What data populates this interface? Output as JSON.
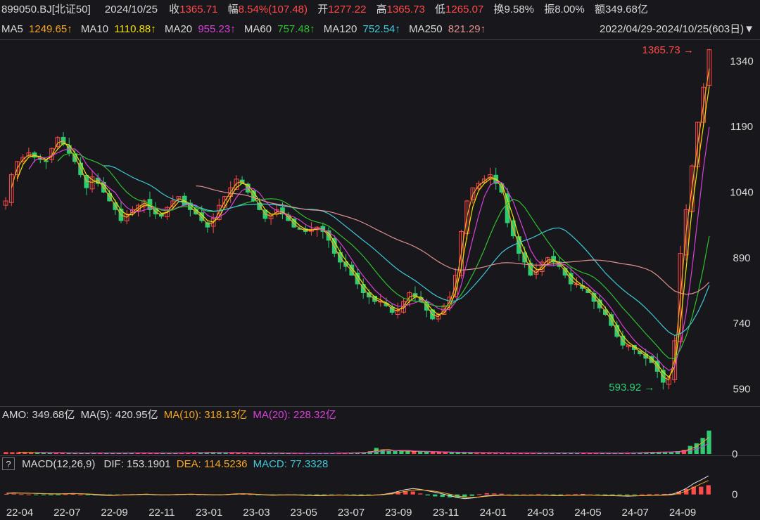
{
  "header": {
    "symbol": "899050.BJ[北证50]",
    "date": "2024/10/25",
    "close_label": "收",
    "close": "1365.71",
    "change_label": "幅",
    "change": "8.54%(107.48)",
    "open_label": "开",
    "open": "1277.22",
    "high_label": "高",
    "high": "1365.73",
    "low_label": "低",
    "low": "1265.07",
    "turnover_label": "换",
    "turnover": "9.58%",
    "amplitude_label": "振",
    "amplitude": "8.00%",
    "amount_label": "额",
    "amount": "349.68亿"
  },
  "ma_legend": [
    {
      "label": "MA5",
      "value": "1249.65↑",
      "color": "#f5a623"
    },
    {
      "label": "MA10",
      "value": "1110.88↑",
      "color": "#f0e000"
    },
    {
      "label": "MA20",
      "value": "955.23↑",
      "color": "#d83fd8"
    },
    {
      "label": "MA60",
      "value": "757.48↑",
      "color": "#2fbf2f"
    },
    {
      "label": "MA120",
      "value": "752.54↑",
      "color": "#3ec8d8"
    },
    {
      "label": "MA250",
      "value": "821.29↑",
      "color": "#e0908f"
    }
  ],
  "range_label": "2022/04/29-2024/10/25(603日)▼",
  "max_marker": "1365.73",
  "min_marker": "593.92",
  "amo_legend": {
    "amo": "AMO: 349.68亿",
    "ma5": "MA(5): 420.95亿",
    "ma10": "MA(10): 318.13亿",
    "ma20": "MA(20): 228.32亿"
  },
  "macd_legend": {
    "help": "?",
    "title": "MACD(12,26,9)",
    "dif": "DIF: 153.1901",
    "dea": "DEA: 114.5236",
    "macd": "MACD: 77.3328"
  },
  "colors": {
    "up": "#ff4a4a",
    "down": "#2ecc71",
    "background": "#18181c",
    "grid": "#3a3a40",
    "axis_text": "#d8d8d8"
  },
  "chart_data": {
    "type": "candlestick",
    "ylim": [
      560,
      1380
    ],
    "y_ticks": [
      590,
      740,
      890,
      1040,
      1190,
      1340
    ],
    "x_ticks": [
      "22-04",
      "22-07",
      "22-09",
      "22-11",
      "23-01",
      "23-03",
      "23-05",
      "23-07",
      "23-09",
      "23-11",
      "24-01",
      "24-03",
      "24-05",
      "24-07",
      "24-09"
    ],
    "close_path": [
      1020,
      1080,
      1110,
      1120,
      1130,
      1120,
      1115,
      1110,
      1140,
      1165,
      1150,
      1130,
      1110,
      1080,
      1050,
      1075,
      1060,
      1040,
      1020,
      1000,
      975,
      990,
      1000,
      1010,
      1020,
      1000,
      990,
      985,
      1005,
      1020,
      1030,
      1010,
      1000,
      990,
      975,
      960,
      980,
      1010,
      1030,
      1050,
      1070,
      1060,
      1040,
      1020,
      1000,
      980,
      990,
      1000,
      990,
      975,
      960,
      955,
      950,
      955,
      960,
      950,
      930,
      900,
      880,
      870,
      850,
      830,
      810,
      800,
      790,
      790,
      780,
      765,
      770,
      790,
      810,
      800,
      790,
      770,
      750,
      760,
      780,
      800,
      850,
      950,
      1020,
      1050,
      1060,
      1070,
      1080,
      1060,
      1040,
      970,
      940,
      900,
      880,
      850,
      860,
      880,
      890,
      880,
      870,
      850,
      830,
      830,
      820,
      810,
      790,
      775,
      760,
      735,
      710,
      690,
      690,
      680,
      670,
      660,
      650,
      630,
      605,
      615,
      700,
      900,
      1000,
      1100,
      1200,
      1280,
      1366
    ],
    "volume_ylim": [
      0,
      420
    ],
    "volume_path": [
      28,
      26,
      24,
      22,
      20,
      18,
      20,
      18,
      16,
      15,
      14,
      13,
      14,
      15,
      16,
      15,
      14,
      13,
      14,
      15,
      15,
      16,
      15,
      14,
      13,
      13,
      14,
      15,
      16,
      18,
      20,
      22,
      24,
      22,
      20,
      18,
      17,
      16,
      15,
      14,
      14,
      13,
      13,
      12,
      12,
      11,
      11,
      10,
      10,
      10,
      10,
      11,
      12,
      14,
      16,
      18,
      20,
      26,
      40,
      90,
      60,
      50,
      45,
      42,
      40,
      38,
      35,
      33,
      30,
      28,
      26,
      24,
      22,
      20,
      19,
      18,
      18,
      17,
      16,
      15,
      15,
      14,
      14,
      13,
      13,
      14,
      15,
      15,
      16,
      16,
      15,
      15,
      15,
      14,
      14,
      13,
      13,
      13,
      14,
      15,
      18,
      22,
      25,
      28,
      30,
      30,
      32,
      40,
      60,
      120,
      160,
      240,
      349
    ],
    "macd_ylim": [
      -60,
      160
    ],
    "dif_path": [
      10,
      14,
      12,
      10,
      8,
      6,
      5,
      4,
      6,
      8,
      6,
      3,
      -2,
      -6,
      -8,
      -6,
      -4,
      -2,
      0,
      2,
      -2,
      -4,
      -3,
      -1,
      1,
      2,
      0,
      -2,
      -4,
      -3,
      0,
      4,
      6,
      4,
      0,
      -4,
      -6,
      -5,
      -3,
      -4,
      -6,
      -8,
      -10,
      -9,
      -7,
      -5,
      -6,
      -8,
      -9,
      -8,
      -5,
      0,
      10,
      25,
      40,
      48,
      42,
      30,
      18,
      5,
      -10,
      -25,
      -35,
      -30,
      -20,
      -10,
      -6,
      -4,
      -6,
      -8,
      -7,
      -6,
      -5,
      -7,
      -9,
      -10,
      -8,
      -6,
      -4,
      -5,
      -7,
      -9,
      -10,
      -12,
      -14,
      -12,
      -10,
      -8,
      -6,
      -4,
      0,
      20,
      50,
      90,
      120,
      153
    ],
    "dea_path": [
      8,
      11,
      11,
      10,
      9,
      7,
      6,
      5,
      5,
      6,
      6,
      4,
      1,
      -2,
      -5,
      -5,
      -4,
      -3,
      -1,
      0,
      -1,
      -2,
      -2,
      -1,
      0,
      1,
      0,
      -1,
      -2,
      -2,
      -1,
      2,
      4,
      3,
      1,
      -2,
      -4,
      -4,
      -3,
      -3,
      -4,
      -6,
      -7,
      -7,
      -6,
      -5,
      -5,
      -6,
      -7,
      -7,
      -5,
      -2,
      4,
      14,
      26,
      36,
      38,
      34,
      26,
      15,
      2,
      -12,
      -22,
      -24,
      -21,
      -15,
      -10,
      -7,
      -6,
      -7,
      -7,
      -6,
      -6,
      -6,
      -7,
      -8,
      -8,
      -7,
      -6,
      -5,
      -6,
      -7,
      -8,
      -10,
      -11,
      -11,
      -10,
      -9,
      -7,
      -6,
      -3,
      8,
      28,
      58,
      88,
      115
    ]
  }
}
